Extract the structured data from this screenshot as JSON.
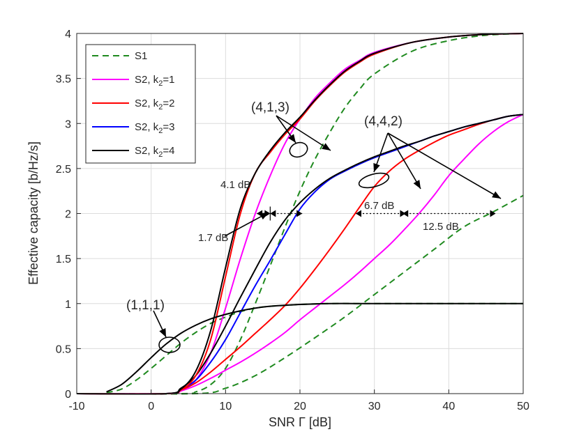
{
  "chart_data": {
    "type": "line",
    "title": "",
    "xlabel": "SNR Γ [dB]",
    "ylabel": "Effective capacity [b/Hz/s]",
    "xlim": [
      -10,
      50
    ],
    "ylim": [
      0,
      4
    ],
    "xticks": [
      "-10",
      "0",
      "10",
      "20",
      "30",
      "40",
      "50"
    ],
    "yticks": [
      "0",
      "0.5",
      "1",
      "1.5",
      "2",
      "2.5",
      "3",
      "3.5",
      "4"
    ],
    "grid": true,
    "legend_position": "top-left",
    "legend": [
      {
        "label": "S1",
        "sub": "",
        "color": "#1f8a1f",
        "dash": true
      },
      {
        "label": "S2, k",
        "sub": "2",
        "suffix": "=1",
        "color": "#ff00ff",
        "dash": false
      },
      {
        "label": "S2, k",
        "sub": "2",
        "suffix": "=2",
        "color": "#ff0000",
        "dash": false
      },
      {
        "label": "S2, k",
        "sub": "2",
        "suffix": "=3",
        "color": "#0000ff",
        "dash": false
      },
      {
        "label": "S2, k",
        "sub": "2",
        "suffix": "=4",
        "color": "#000000",
        "dash": false
      }
    ],
    "series": [
      {
        "config": "(1,1,1)",
        "scheme": "S1",
        "color": "#1f8a1f",
        "dash": true,
        "x": [
          -10,
          -6,
          -4,
          -2,
          0,
          2,
          4,
          6,
          8,
          10,
          12,
          14,
          16,
          18,
          20,
          24,
          30,
          40,
          50
        ],
        "y": [
          0,
          0.01,
          0.05,
          0.15,
          0.28,
          0.42,
          0.56,
          0.68,
          0.78,
          0.85,
          0.91,
          0.95,
          0.97,
          0.98,
          0.99,
          1.0,
          1.0,
          1.0,
          1.0
        ]
      },
      {
        "config": "(1,1,1)",
        "scheme": "S2, k2=4",
        "color": "#000000",
        "dash": false,
        "x": [
          -10,
          -6,
          -4,
          -2,
          0,
          2,
          4,
          6,
          8,
          10,
          12,
          14,
          16,
          20,
          24,
          30,
          40,
          50
        ],
        "y": [
          0,
          0.02,
          0.1,
          0.24,
          0.4,
          0.55,
          0.67,
          0.76,
          0.83,
          0.88,
          0.92,
          0.95,
          0.97,
          0.99,
          1.0,
          1.0,
          1.0,
          1.0
        ]
      },
      {
        "config": "(4,1,3)",
        "scheme": "S1",
        "color": "#1f8a1f",
        "dash": true,
        "x": [
          4,
          6,
          8,
          10,
          12,
          14,
          16,
          18,
          20,
          22,
          24,
          26,
          28,
          30,
          35,
          40,
          45,
          50
        ],
        "y": [
          0,
          0.02,
          0.1,
          0.28,
          0.6,
          1.0,
          1.42,
          1.85,
          2.25,
          2.6,
          2.9,
          3.17,
          3.38,
          3.55,
          3.8,
          3.92,
          3.98,
          4.0
        ]
      },
      {
        "config": "(4,1,3)",
        "scheme": "S2, k2=1",
        "color": "#ff00ff",
        "dash": false,
        "x": [
          2,
          4,
          6,
          8,
          10,
          12,
          14,
          16,
          18,
          20,
          22,
          24,
          26,
          28,
          30,
          35,
          40,
          45,
          50
        ],
        "y": [
          0,
          0.03,
          0.15,
          0.45,
          0.95,
          1.5,
          2.0,
          2.42,
          2.78,
          3.05,
          3.28,
          3.45,
          3.6,
          3.7,
          3.79,
          3.9,
          3.96,
          3.99,
          4.0
        ]
      },
      {
        "config": "(4,1,3)",
        "scheme": "S2, k2=2",
        "color": "#ff0000",
        "dash": false,
        "x": [
          2,
          4,
          6,
          8,
          10,
          12,
          14,
          16,
          18,
          20,
          22,
          24,
          26,
          28,
          30,
          35,
          40,
          45,
          50
        ],
        "y": [
          0,
          0.04,
          0.2,
          0.6,
          1.3,
          2.0,
          2.45,
          2.68,
          2.88,
          3.05,
          3.25,
          3.42,
          3.57,
          3.68,
          3.77,
          3.9,
          3.96,
          3.99,
          4.0
        ]
      },
      {
        "config": "(4,1,3)",
        "scheme": "S2, k2=4",
        "color": "#000000",
        "dash": false,
        "x": [
          2,
          4,
          6,
          8,
          10,
          12,
          14,
          16,
          18,
          20,
          22,
          24,
          26,
          28,
          30,
          35,
          40,
          45,
          50
        ],
        "y": [
          0,
          0.05,
          0.25,
          0.7,
          1.4,
          2.06,
          2.45,
          2.7,
          2.9,
          3.07,
          3.26,
          3.43,
          3.58,
          3.69,
          3.78,
          3.9,
          3.96,
          3.99,
          4.0
        ]
      },
      {
        "config": "(4,4,2)",
        "scheme": "S1",
        "color": "#1f8a1f",
        "dash": true,
        "x": [
          6,
          10,
          14,
          18,
          22,
          26,
          30,
          34,
          38,
          42,
          46,
          50
        ],
        "y": [
          0,
          0.06,
          0.2,
          0.4,
          0.62,
          0.85,
          1.1,
          1.35,
          1.6,
          1.85,
          2.02,
          2.2
        ]
      },
      {
        "config": "(4,4,2)",
        "scheme": "S2, k2=1",
        "color": "#ff00ff",
        "dash": false,
        "x": [
          2,
          4,
          6,
          8,
          10,
          12,
          14,
          16,
          18,
          20,
          22,
          24,
          26,
          28,
          30,
          32,
          34,
          36,
          38,
          40,
          42,
          44,
          46,
          48,
          50
        ],
        "y": [
          0,
          0.03,
          0.09,
          0.17,
          0.26,
          0.35,
          0.45,
          0.56,
          0.68,
          0.82,
          0.95,
          1.08,
          1.21,
          1.35,
          1.5,
          1.65,
          1.82,
          2.0,
          2.2,
          2.42,
          2.6,
          2.77,
          2.91,
          3.02,
          3.1
        ]
      },
      {
        "config": "(4,4,2)",
        "scheme": "S2, k2=2",
        "color": "#ff0000",
        "dash": false,
        "x": [
          2,
          4,
          6,
          8,
          10,
          12,
          14,
          16,
          18,
          20,
          22,
          24,
          26,
          28,
          30,
          32,
          34,
          36,
          38,
          40,
          42,
          44,
          46,
          48,
          50
        ],
        "y": [
          0,
          0.04,
          0.12,
          0.24,
          0.38,
          0.52,
          0.67,
          0.82,
          0.98,
          1.17,
          1.38,
          1.6,
          1.83,
          2.07,
          2.3,
          2.47,
          2.6,
          2.7,
          2.79,
          2.87,
          2.93,
          2.99,
          3.04,
          3.08,
          3.1
        ]
      },
      {
        "config": "(4,4,2)",
        "scheme": "S2, k2=3",
        "color": "#0000ff",
        "dash": false,
        "x": [
          2,
          4,
          6,
          8,
          10,
          12,
          14,
          16,
          18,
          20,
          22,
          24,
          26,
          28,
          30,
          32,
          34,
          36,
          38,
          40,
          42,
          44,
          46,
          48,
          50
        ],
        "y": [
          0,
          0.05,
          0.15,
          0.35,
          0.6,
          0.9,
          1.2,
          1.48,
          1.77,
          2.05,
          2.24,
          2.38,
          2.47,
          2.55,
          2.62,
          2.68,
          2.74,
          2.8,
          2.86,
          2.91,
          2.96,
          3.0,
          3.04,
          3.08,
          3.1
        ]
      },
      {
        "config": "(4,4,2)",
        "scheme": "S2, k2=4",
        "color": "#000000",
        "dash": false,
        "x": [
          2,
          4,
          6,
          8,
          10,
          12,
          14,
          16,
          18,
          20,
          22,
          24,
          26,
          28,
          30,
          32,
          34,
          36,
          38,
          40,
          42,
          44,
          46,
          48,
          50
        ],
        "y": [
          0,
          0.06,
          0.2,
          0.45,
          0.75,
          1.07,
          1.38,
          1.68,
          1.93,
          2.12,
          2.27,
          2.39,
          2.48,
          2.56,
          2.63,
          2.69,
          2.75,
          2.8,
          2.86,
          2.91,
          2.96,
          3.0,
          3.04,
          3.08,
          3.1
        ]
      }
    ],
    "annotations": [
      {
        "text": "(4,1,3)",
        "kind": "label"
      },
      {
        "text": "(4,4,2)",
        "kind": "label"
      },
      {
        "text": "(1,1,1)",
        "kind": "label"
      },
      {
        "text": "4.1 dB",
        "kind": "gap"
      },
      {
        "text": "1.7 dB",
        "kind": "gap"
      },
      {
        "text": "6.7 dB",
        "kind": "gap"
      },
      {
        "text": "12.5 dB",
        "kind": "gap"
      }
    ]
  }
}
